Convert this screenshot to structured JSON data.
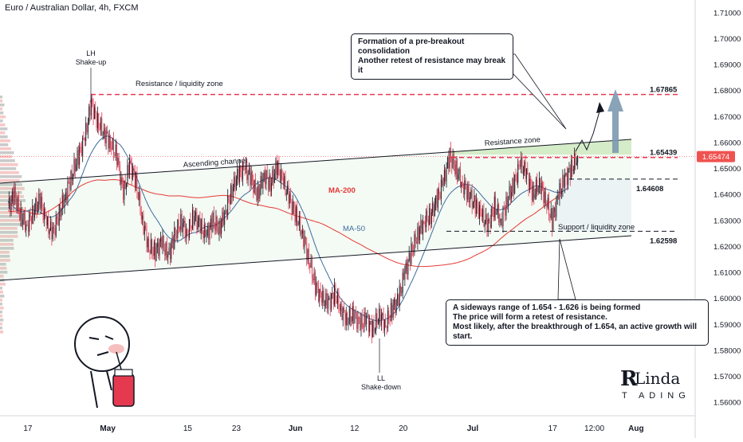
{
  "header": {
    "title": "Euro / Australian Dollar, 4h, FXCM"
  },
  "chart_data": {
    "type": "candlestick",
    "title": "Euro / Australian Dollar, 4h, FXCM",
    "ylim": [
      1.555,
      1.715
    ],
    "y_ticks": [
      "1.71000",
      "1.70000",
      "1.69000",
      "1.68000",
      "1.67000",
      "1.66000",
      "1.65000",
      "1.64000",
      "1.63000",
      "1.62000",
      "1.61000",
      "1.60000",
      "1.59000",
      "1.58000",
      "1.57000",
      "1.56000"
    ],
    "y_tick_values": [
      1.71,
      1.7,
      1.69,
      1.68,
      1.67,
      1.66,
      1.65,
      1.64,
      1.63,
      1.62,
      1.61,
      1.6,
      1.59,
      1.58,
      1.57,
      1.56
    ],
    "x_ticks": [
      {
        "label": "17",
        "pos": 0.04
      },
      {
        "label": "May",
        "pos": 0.155
      },
      {
        "label": "15",
        "pos": 0.27
      },
      {
        "label": "23",
        "pos": 0.34
      },
      {
        "label": "Jun",
        "pos": 0.425
      },
      {
        "label": "12",
        "pos": 0.51
      },
      {
        "label": "20",
        "pos": 0.58
      },
      {
        "label": "Jul",
        "pos": 0.68
      },
      {
        "label": "17",
        "pos": 0.795
      },
      {
        "label": "12:00",
        "pos": 0.855
      },
      {
        "label": "Aug",
        "pos": 0.915
      }
    ],
    "current_price": "1.65474",
    "levels": [
      {
        "label": "1.67865",
        "value": 1.67865,
        "style": "dashed-red"
      },
      {
        "label": "1.65439",
        "value": 1.65439,
        "style": "dashed-red"
      },
      {
        "label": "1.64608",
        "value": 1.64608,
        "style": "dashed-black"
      },
      {
        "label": "1.62598",
        "value": 1.62598,
        "style": "dashed-black"
      }
    ],
    "series": [
      {
        "name": "MA-200",
        "color": "#e53935"
      },
      {
        "name": "MA-50",
        "color": "#3d6d9e"
      }
    ],
    "close_path": [
      1.635,
      1.64,
      1.632,
      1.628,
      1.634,
      1.638,
      1.629,
      1.625,
      1.633,
      1.64,
      1.648,
      1.655,
      1.662,
      1.675,
      1.668,
      1.664,
      1.66,
      1.655,
      1.64,
      1.652,
      1.645,
      1.63,
      1.62,
      1.618,
      1.622,
      1.616,
      1.624,
      1.63,
      1.625,
      1.632,
      1.628,
      1.624,
      1.63,
      1.627,
      1.634,
      1.642,
      1.648,
      1.65,
      1.646,
      1.64,
      1.648,
      1.644,
      1.651,
      1.645,
      1.638,
      1.632,
      1.625,
      1.615,
      1.605,
      1.6,
      1.598,
      1.602,
      1.596,
      1.592,
      1.594,
      1.59,
      1.592,
      1.588,
      1.594,
      1.59,
      1.596,
      1.6,
      1.61,
      1.618,
      1.625,
      1.63,
      1.632,
      1.638,
      1.645,
      1.655,
      1.65,
      1.644,
      1.64,
      1.636,
      1.632,
      1.628,
      1.636,
      1.63,
      1.638,
      1.644,
      1.652,
      1.648,
      1.64,
      1.645,
      1.638,
      1.63,
      1.64,
      1.646,
      1.65,
      1.655
    ]
  },
  "annotations": {
    "lh_label": [
      "LH",
      "Shake-up"
    ],
    "ll_label": [
      "LL",
      "Shake-down"
    ],
    "resistance_liquidity": "Resistance / liquidity zone",
    "ascending_channel": "Ascending channel",
    "resistance_zone": "Resistance zone",
    "support_liquidity": "Support / liquidity zone",
    "ma200": "MA-200",
    "ma50": "MA-50",
    "note_top": [
      "Formation of a pre-breakout consolidation",
      "Another retest of resistance may break it"
    ],
    "note_bottom": [
      "A sideways range of 1.654 - 1.626 is being formed",
      "The price will form a retest of resistance.",
      "Most likely, after the breakthrough of 1.654, an active growth will start."
    ]
  },
  "logo": {
    "brand_top": "Linda",
    "brand_bottom": "T ADING"
  },
  "colors": {
    "up": "#26a69a",
    "down": "#ef5350",
    "candle_up": "#131722",
    "candle_down": "#e53950",
    "resistance": "#e53950",
    "zone": "#c8e6b5"
  }
}
